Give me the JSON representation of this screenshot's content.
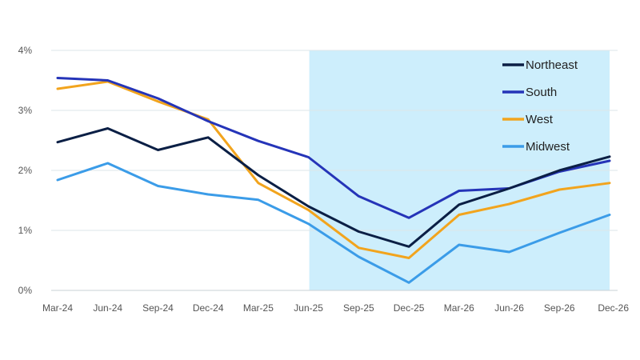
{
  "chart_data": {
    "type": "line",
    "categories": [
      "Mar-24",
      "Jun-24",
      "Sep-24",
      "Dec-24",
      "Mar-25",
      "Jun-25",
      "Sep-25",
      "Dec-25",
      "Mar-26",
      "Jun-26",
      "Sep-26",
      "Dec-26"
    ],
    "y_ticks": [
      "0%",
      "1%",
      "2%",
      "3%",
      "4%"
    ],
    "ylim": [
      0,
      4
    ],
    "grid": "horizontal",
    "legend_position": "top-right",
    "forecast_shading": {
      "start": "Jun-25",
      "end": "Dec-26",
      "color": "#cdeefc"
    },
    "series": [
      {
        "name": "Northeast",
        "color": "#0b1f45",
        "values": [
          2.47,
          2.7,
          2.34,
          2.55,
          1.92,
          1.4,
          0.98,
          0.73,
          1.43,
          1.7,
          2.0,
          2.23
        ]
      },
      {
        "name": "South",
        "color": "#2534b8",
        "values": [
          3.54,
          3.5,
          3.2,
          2.82,
          2.49,
          2.22,
          1.57,
          1.21,
          1.66,
          1.7,
          1.98,
          2.16
        ]
      },
      {
        "name": "West",
        "color": "#f2a41d",
        "values": [
          3.36,
          3.48,
          3.15,
          2.85,
          1.79,
          1.34,
          0.71,
          0.54,
          1.26,
          1.44,
          1.68,
          1.79
        ]
      },
      {
        "name": "Midwest",
        "color": "#3b9ce8",
        "values": [
          1.84,
          2.12,
          1.74,
          1.6,
          1.51,
          1.11,
          0.56,
          0.13,
          0.76,
          0.64,
          0.96,
          1.26
        ]
      }
    ]
  }
}
